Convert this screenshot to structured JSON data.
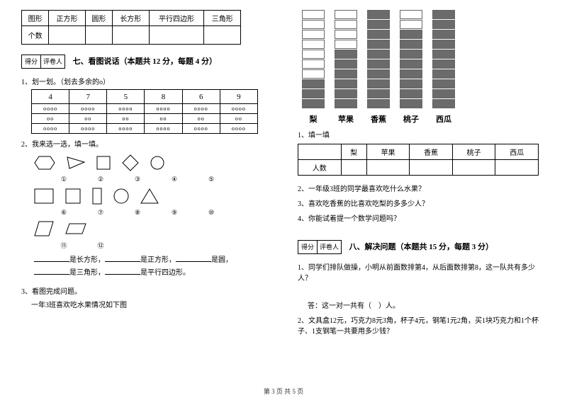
{
  "footer": "第 3 页 共 5 页",
  "table_shapes": {
    "headers": [
      "图形",
      "正方形",
      "圆形",
      "长方形",
      "平行四边形",
      "三角形"
    ],
    "row_label": "个数"
  },
  "score": {
    "left": "得分",
    "right": "评卷人"
  },
  "sec7": {
    "title": "七、看图说话（本题共 12 分，每题 4 分）",
    "q1": "1、划一划。（划去多余的o）",
    "q2": "2、我来选一选，填一填。",
    "q3": "3、看图完成问题。",
    "q3sub": "一年3班喜欢吃水果情况如下图"
  },
  "tA": {
    "headers": [
      "4",
      "7",
      "5",
      "8",
      "6",
      "9"
    ],
    "rows": [
      [
        "oooo",
        "oooo",
        "oooo",
        "oooo",
        "oooo",
        "oooo"
      ],
      [
        "oo",
        "oo",
        "oo",
        "oo",
        "oo",
        "oo"
      ],
      [
        "oooo",
        "oooo",
        "oooo",
        "oooo",
        "oooo",
        "oooo"
      ]
    ]
  },
  "shape_labels": [
    [
      "①",
      "②",
      "③",
      "④",
      "⑤"
    ],
    [
      "⑥",
      "⑦",
      "⑧",
      "⑨",
      "⑩"
    ],
    [
      "⑪",
      "⑫"
    ]
  ],
  "fill_text": {
    "a": "是长方形，",
    "b": "是正方形，",
    "c": "是圆，",
    "d": "是三角形，",
    "e": "是平行四边形。"
  },
  "chart": {
    "labels": [
      "梨",
      "苹果",
      "香蕉",
      "桃子",
      "西瓜"
    ],
    "total": 10,
    "filled": [
      3,
      6,
      10,
      8,
      10
    ],
    "color_filled": "#6b6b6b",
    "color_empty": "#ffffff",
    "border": "#666666"
  },
  "q_right": {
    "fill": "1、填一填",
    "t3_headers": [
      "",
      "梨",
      "苹果",
      "香蕉",
      "桃子",
      "西瓜"
    ],
    "t3_row": "人数",
    "q2": "2、一年级3班的同学最喜欢吃什么水果？",
    "q3": "3、喜欢吃香蕉的比喜欢吃梨的多多少人？",
    "q4": "4、你能试着提一个数学问题吗？"
  },
  "sec8": {
    "title": "八、解决问题（本题共 15 分，每题 3 分）",
    "q1": "1、同学们排队做操，小明从前面数排第4，从后面数排第8，这一队共有多少人？",
    "a1": "答：这一对一共有（　）人。",
    "q2": "2、文具盒12元，巧克力8元3角，杯子4元，钢笔1元2角，买1块巧克力和1个杯子、1支钢笔一共要用多少钱？"
  }
}
